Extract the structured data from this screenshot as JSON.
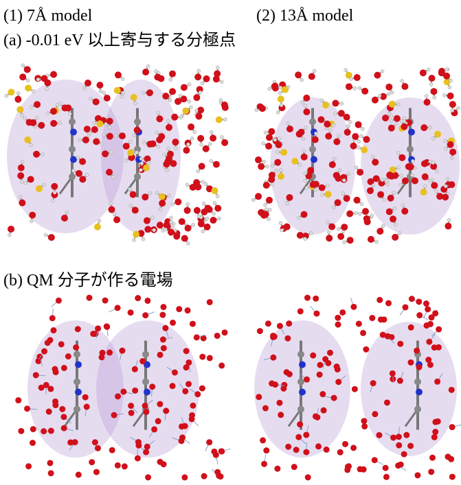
{
  "header": {
    "model_1": "(1) 7Å model",
    "model_2": "(2) 13Å model"
  },
  "panels": {
    "a": "(a) -0.01 eV  以上寄与する分極点",
    "b": "(b) QM  分子が作る電場"
  }
}
